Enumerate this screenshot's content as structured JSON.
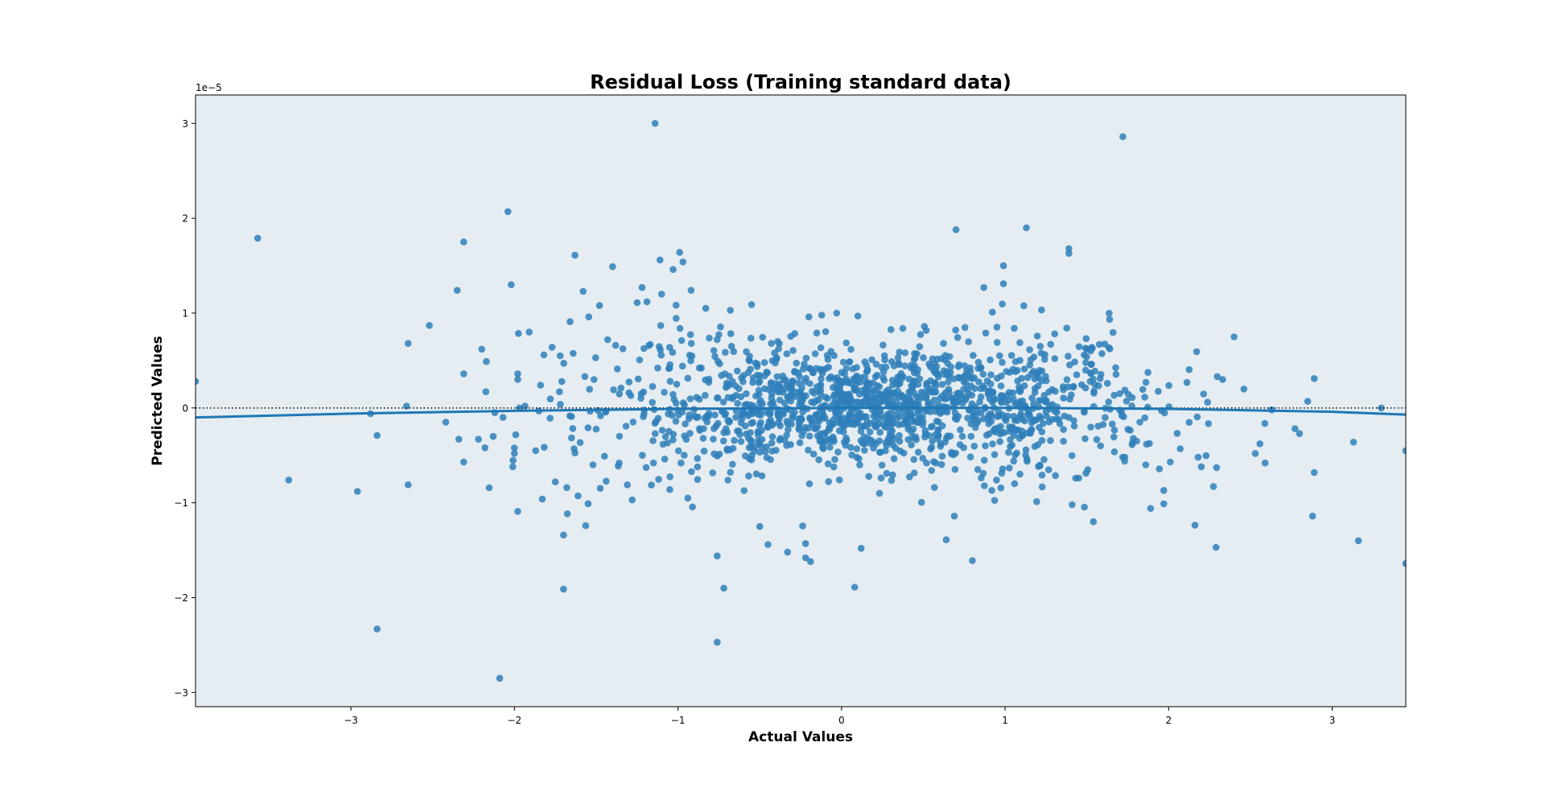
{
  "chart_data": {
    "type": "scatter",
    "title": "Residual Loss (Training standard data)",
    "xlabel": "Actual Values",
    "ylabel": "Predicted Values",
    "y_offset_label": "1e−5",
    "xlim": [
      -3.95,
      3.45
    ],
    "ylim": [
      -3.15,
      3.3
    ],
    "grid": false,
    "background": "#e5edf2",
    "point_color": "#2f7fba",
    "fit_color": "#1f77b4",
    "reference_line": {
      "y": 0,
      "style": "dotted",
      "color": "#000000"
    },
    "x_ticks": [
      -3,
      -2,
      -1,
      0,
      1,
      2,
      3
    ],
    "y_ticks": [
      -3,
      -2,
      -1,
      0,
      1,
      2,
      3
    ],
    "x_tick_labels": [
      "−3",
      "−2",
      "−1",
      "0",
      "1",
      "2",
      "3"
    ],
    "y_tick_labels": [
      "−3",
      "−2",
      "−1",
      "0",
      "1",
      "2",
      "3"
    ],
    "fit_line": {
      "x": [
        -3.95,
        -3.0,
        -2.0,
        -1.0,
        0.0,
        1.0,
        2.0,
        3.0,
        3.45
      ],
      "y": [
        -0.1,
        -0.06,
        -0.03,
        -0.01,
        0.0,
        0.0,
        -0.01,
        -0.04,
        -0.07
      ]
    },
    "points": [
      {
        "x": -3.95,
        "y": 0.28
      },
      {
        "x": -3.57,
        "y": 1.79
      },
      {
        "x": -3.38,
        "y": -0.76
      },
      {
        "x": -2.96,
        "y": -0.88
      },
      {
        "x": -2.88,
        "y": -0.06
      },
      {
        "x": -2.84,
        "y": -0.29
      },
      {
        "x": -2.84,
        "y": -2.33
      },
      {
        "x": -2.65,
        "y": 0.68
      },
      {
        "x": -2.65,
        "y": -0.81
      },
      {
        "x": -2.66,
        "y": 0.02
      },
      {
        "x": -2.52,
        "y": 0.87
      },
      {
        "x": -2.42,
        "y": -0.15
      },
      {
        "x": -2.35,
        "y": 1.24
      },
      {
        "x": -2.34,
        "y": -0.33
      },
      {
        "x": -2.31,
        "y": 1.75
      },
      {
        "x": -2.31,
        "y": 0.36
      },
      {
        "x": -2.31,
        "y": -0.57
      },
      {
        "x": -2.22,
        "y": -0.33
      },
      {
        "x": -2.2,
        "y": 0.62
      },
      {
        "x": -2.18,
        "y": -0.42
      },
      {
        "x": -2.13,
        "y": -0.3
      },
      {
        "x": -2.12,
        "y": -0.05
      },
      {
        "x": -2.09,
        "y": -2.85
      },
      {
        "x": -2.07,
        "y": -0.1
      },
      {
        "x": -2.04,
        "y": 2.07
      },
      {
        "x": -2.02,
        "y": 1.3
      },
      {
        "x": -2.01,
        "y": -0.62
      },
      {
        "x": -2.0,
        "y": -0.48
      },
      {
        "x": -1.98,
        "y": 0.36
      },
      {
        "x": -1.98,
        "y": 0.3
      },
      {
        "x": -1.98,
        "y": -1.09
      },
      {
        "x": -1.97,
        "y": 0.0
      },
      {
        "x": -1.91,
        "y": 0.8
      },
      {
        "x": -1.87,
        "y": -0.45
      },
      {
        "x": -1.84,
        "y": 0.24
      },
      {
        "x": -1.83,
        "y": -0.96
      },
      {
        "x": -1.82,
        "y": 0.56
      },
      {
        "x": -1.77,
        "y": 0.64
      },
      {
        "x": -1.75,
        "y": -0.78
      },
      {
        "x": -1.72,
        "y": 0.55
      },
      {
        "x": -1.7,
        "y": -1.34
      },
      {
        "x": -1.7,
        "y": -1.91
      },
      {
        "x": -1.68,
        "y": -0.84
      },
      {
        "x": -1.66,
        "y": 0.91
      },
      {
        "x": -1.63,
        "y": 1.61
      },
      {
        "x": -1.58,
        "y": 1.23
      },
      {
        "x": -1.55,
        "y": -1.01
      },
      {
        "x": -1.52,
        "y": -0.6
      },
      {
        "x": -1.48,
        "y": 1.08
      },
      {
        "x": -1.43,
        "y": 0.72
      },
      {
        "x": -1.4,
        "y": 1.49
      },
      {
        "x": -1.36,
        "y": -0.58
      },
      {
        "x": -1.31,
        "y": -0.81
      },
      {
        "x": -1.28,
        "y": -0.97
      },
      {
        "x": -1.25,
        "y": 1.11
      },
      {
        "x": -1.22,
        "y": 1.27
      },
      {
        "x": -1.19,
        "y": 1.12
      },
      {
        "x": -1.17,
        "y": 0.67
      },
      {
        "x": -1.15,
        "y": -0.58
      },
      {
        "x": -1.14,
        "y": 3.0
      },
      {
        "x": -1.11,
        "y": 1.56
      },
      {
        "x": -1.1,
        "y": 1.2
      },
      {
        "x": -1.05,
        "y": -0.86
      },
      {
        "x": -1.03,
        "y": 1.46
      },
      {
        "x": -0.99,
        "y": 1.64
      },
      {
        "x": -0.97,
        "y": 1.54
      },
      {
        "x": -0.94,
        "y": -0.95
      },
      {
        "x": -0.92,
        "y": 1.24
      },
      {
        "x": -0.83,
        "y": 1.05
      },
      {
        "x": -0.76,
        "y": -2.47
      },
      {
        "x": -0.76,
        "y": -1.56
      },
      {
        "x": -0.72,
        "y": -1.9
      },
      {
        "x": -0.68,
        "y": 1.03
      },
      {
        "x": -0.55,
        "y": 1.09
      },
      {
        "x": -0.5,
        "y": -1.25
      },
      {
        "x": -0.45,
        "y": -1.44
      },
      {
        "x": -0.33,
        "y": -1.52
      },
      {
        "x": -0.22,
        "y": -1.43
      },
      {
        "x": -0.22,
        "y": -1.58
      },
      {
        "x": -0.19,
        "y": -1.62
      },
      {
        "x": -0.2,
        "y": 0.96
      },
      {
        "x": -0.03,
        "y": 1.0
      },
      {
        "x": 0.08,
        "y": -1.89
      },
      {
        "x": 0.12,
        "y": -1.48
      },
      {
        "x": 0.1,
        "y": 0.97
      },
      {
        "x": 0.7,
        "y": 1.88
      },
      {
        "x": 0.64,
        "y": -1.39
      },
      {
        "x": 0.69,
        "y": -1.14
      },
      {
        "x": 0.8,
        "y": -1.61
      },
      {
        "x": 0.87,
        "y": 1.27
      },
      {
        "x": 0.99,
        "y": 1.5
      },
      {
        "x": 0.99,
        "y": 1.31
      },
      {
        "x": 1.13,
        "y": 1.9
      },
      {
        "x": 1.39,
        "y": 1.68
      },
      {
        "x": 1.39,
        "y": 1.63
      },
      {
        "x": 1.41,
        "y": -1.02
      },
      {
        "x": 1.54,
        "y": -1.2
      },
      {
        "x": 1.72,
        "y": 2.86
      },
      {
        "x": 1.86,
        "y": -0.6
      },
      {
        "x": 1.89,
        "y": -1.06
      },
      {
        "x": 1.97,
        "y": -0.87
      },
      {
        "x": 2.01,
        "y": -0.57
      },
      {
        "x": 2.18,
        "y": -0.52
      },
      {
        "x": 2.2,
        "y": -0.62
      },
      {
        "x": 2.29,
        "y": -1.47
      },
      {
        "x": 2.33,
        "y": 0.3
      },
      {
        "x": 2.4,
        "y": 0.75
      },
      {
        "x": 2.46,
        "y": 0.2
      },
      {
        "x": 2.53,
        "y": -0.48
      },
      {
        "x": 2.59,
        "y": -0.58
      },
      {
        "x": 2.63,
        "y": -0.02
      },
      {
        "x": 2.8,
        "y": -0.27
      },
      {
        "x": 2.85,
        "y": 0.07
      },
      {
        "x": 2.88,
        "y": -1.14
      },
      {
        "x": 2.89,
        "y": 0.31
      },
      {
        "x": 2.89,
        "y": -0.68
      },
      {
        "x": 3.13,
        "y": -0.36
      },
      {
        "x": 3.16,
        "y": -1.4
      },
      {
        "x": 3.3,
        "y": 0.0
      },
      {
        "x": 3.45,
        "y": -0.45
      },
      {
        "x": 3.45,
        "y": -1.64
      }
    ],
    "cluster": {
      "description_free": true,
      "n": 1500,
      "x_mean": 0.25,
      "x_sd": 0.85,
      "y_sd": 0.36,
      "x_range": [
        -2.2,
        2.9
      ]
    }
  }
}
